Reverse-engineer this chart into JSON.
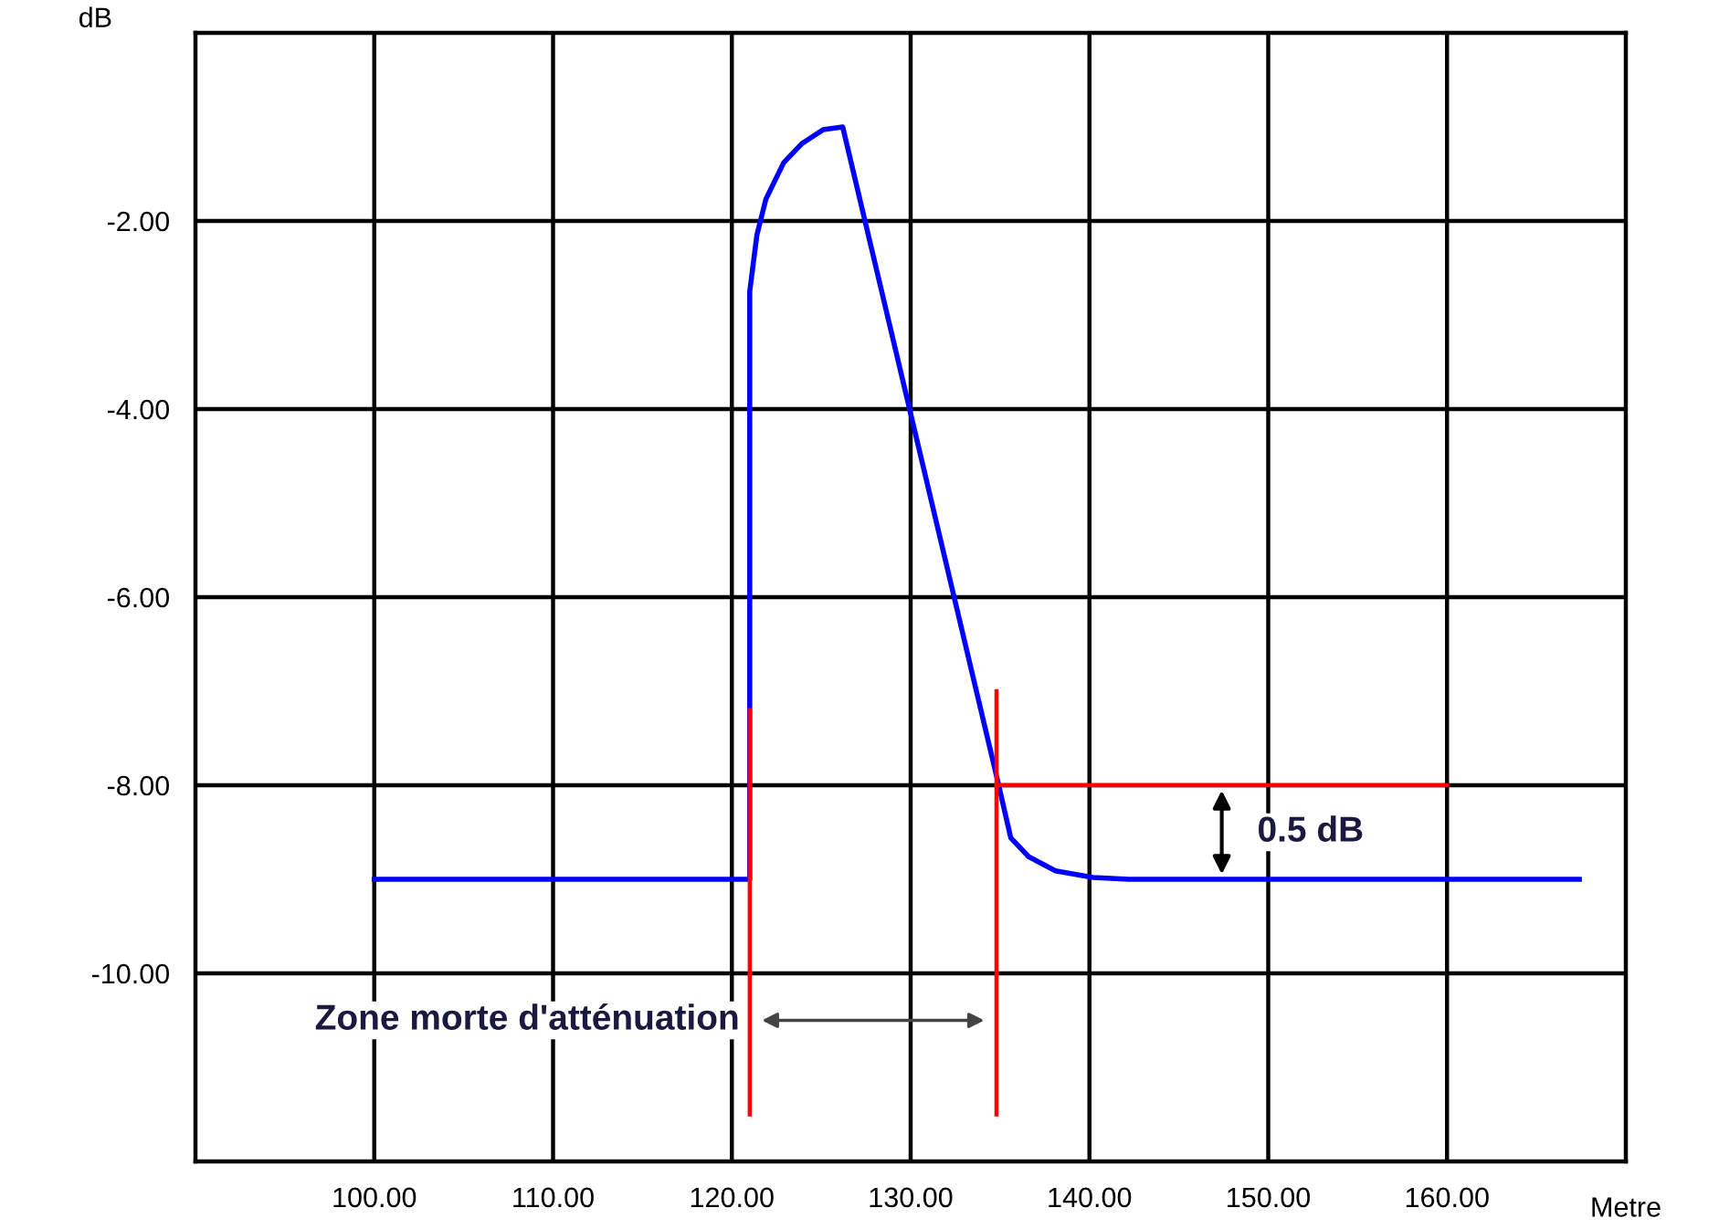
{
  "chart_data": {
    "type": "line",
    "xlabel": "Metre",
    "ylabel": "dB",
    "xlim": [
      90,
      170
    ],
    "ylim": [
      -12,
      0
    ],
    "xticks": [
      {
        "value": 100,
        "label": "100.00"
      },
      {
        "value": 110,
        "label": "110.00"
      },
      {
        "value": 120,
        "label": "120.00"
      },
      {
        "value": 130,
        "label": "130.00"
      },
      {
        "value": 140,
        "label": "140.00"
      },
      {
        "value": 150,
        "label": "150.00"
      },
      {
        "value": 160,
        "label": "160.00"
      }
    ],
    "yticks": [
      {
        "value": -2,
        "label": "-2.00"
      },
      {
        "value": -4,
        "label": "-4.00"
      },
      {
        "value": -6,
        "label": "-6.00"
      },
      {
        "value": -8,
        "label": "-8.00"
      },
      {
        "value": -10,
        "label": "-10.00"
      }
    ],
    "grid": true,
    "legend": false,
    "marker": "none",
    "line_style": "solid",
    "series": [
      {
        "color": "#0000ff",
        "x": [
          100,
          121.0,
          121.0,
          121.4,
          121.9,
          122.9,
          123.9,
          125.1,
          126.2,
          134.9,
          135.6,
          136.6,
          138.1,
          140.2,
          142.2,
          167.4
        ],
        "values": [
          -9,
          -9,
          -2.75,
          -2.15,
          -1.77,
          -1.38,
          -1.18,
          -1.03,
          -1.0,
          -7.98,
          -8.56,
          -8.76,
          -8.91,
          -8.98,
          -9,
          -9
        ]
      },
      {
        "color": "#ff0000",
        "x": [
          121.0,
          121.0
        ],
        "values": [
          -7.2,
          -11.5
        ]
      },
      {
        "color": "#ff0000",
        "x": [
          134.8,
          134.8
        ],
        "values": [
          -7.0,
          -11.5
        ]
      },
      {
        "color": "#ff0000",
        "x": [
          134.8,
          160
        ],
        "values": [
          -8,
          -8
        ]
      }
    ],
    "annotations": [
      "0.5 dB",
      "Zone morte d'atténuation"
    ]
  }
}
